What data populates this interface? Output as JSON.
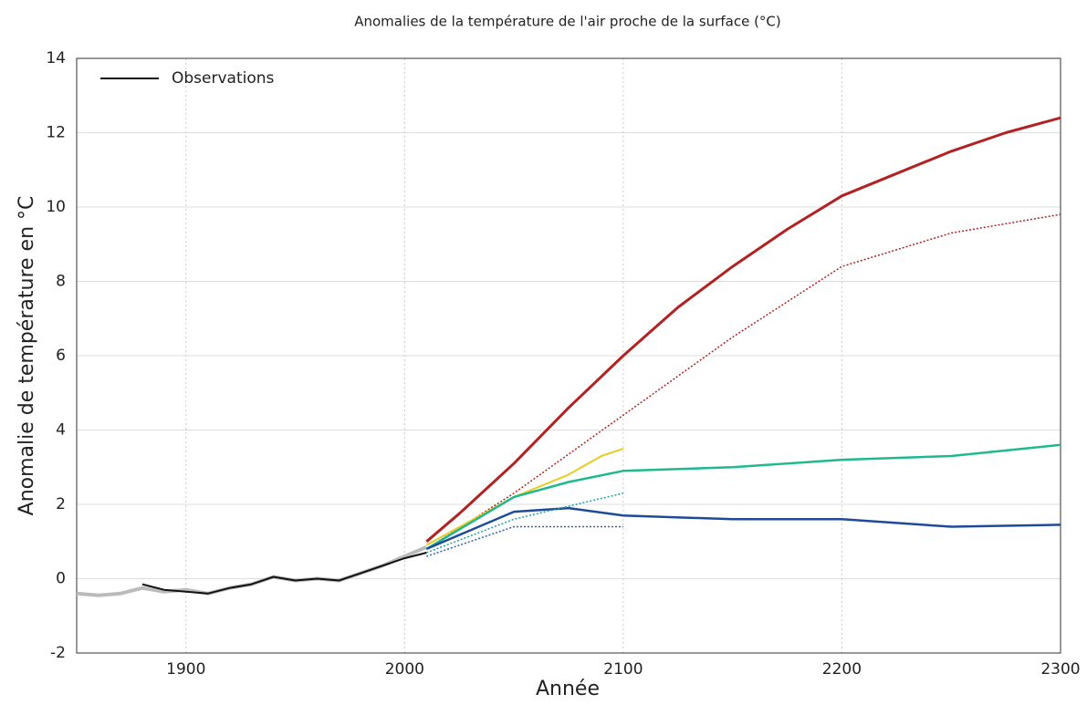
{
  "chart_data": {
    "type": "line",
    "title": "Anomalies de la température de l'air proche de la surface (°C)",
    "x_label": "Année",
    "y_label": "Anomalie de température en °C",
    "xlim": [
      1850,
      2300
    ],
    "xticks": [
      1900,
      2000,
      2100,
      2200,
      2300
    ],
    "ylim": [
      -2,
      14
    ],
    "yticks": [
      -2,
      0,
      2,
      4,
      6,
      8,
      10,
      12,
      14
    ],
    "grid": true,
    "legend": "upper left",
    "series": [
      {
        "color": "#bbbbbb",
        "width": 4,
        "x": [
          1850,
          1860,
          1870,
          1880,
          1890,
          1900,
          1910,
          1920,
          1930,
          1940,
          1950,
          1960,
          1970,
          1980,
          1990,
          2000,
          2010
        ],
        "values": [
          -0.4,
          -0.45,
          -0.4,
          -0.25,
          -0.35,
          -0.3,
          -0.4,
          -0.25,
          -0.15,
          0.05,
          -0.05,
          0.0,
          -0.05,
          0.15,
          0.35,
          0.6,
          0.85
        ]
      },
      {
        "name": "Observations",
        "color": "#111111",
        "width": 2,
        "x": [
          1880,
          1890,
          1900,
          1910,
          1920,
          1930,
          1940,
          1950,
          1960,
          1970,
          1980,
          1990,
          2000,
          2010
        ],
        "values": [
          -0.15,
          -0.3,
          -0.35,
          -0.4,
          -0.25,
          -0.15,
          0.05,
          -0.05,
          0.0,
          -0.05,
          0.15,
          0.35,
          0.55,
          0.7
        ]
      },
      {
        "color": "#b22222",
        "width": 3,
        "x": [
          2010,
          2025,
          2050,
          2075,
          2100,
          2125,
          2150,
          2175,
          2200,
          2225,
          2250,
          2275,
          2300
        ],
        "values": [
          1.0,
          1.75,
          3.1,
          4.6,
          6.0,
          7.3,
          8.4,
          9.4,
          10.3,
          10.9,
          11.5,
          12.0,
          12.4
        ]
      },
      {
        "color": "#b22222",
        "width": 1.5,
        "dash": true,
        "x": [
          2010,
          2050,
          2100,
          2150,
          2200,
          2250,
          2300
        ],
        "values": [
          0.8,
          2.3,
          4.4,
          6.5,
          8.4,
          9.3,
          9.8
        ]
      },
      {
        "color": "#e8cc20",
        "width": 2,
        "x": [
          2010,
          2050,
          2075,
          2090,
          2100
        ],
        "values": [
          0.9,
          2.2,
          2.8,
          3.3,
          3.5
        ]
      },
      {
        "color": "#20b890",
        "width": 2.5,
        "x": [
          2010,
          2050,
          2075,
          2100,
          2150,
          2200,
          2250,
          2300
        ],
        "values": [
          0.8,
          2.2,
          2.6,
          2.9,
          3.0,
          3.2,
          3.3,
          3.6
        ]
      },
      {
        "color": "#1f4a9a",
        "width": 2.5,
        "x": [
          2010,
          2050,
          2075,
          2100,
          2150,
          2200,
          2250,
          2300
        ],
        "values": [
          0.8,
          1.8,
          1.9,
          1.7,
          1.6,
          1.6,
          1.4,
          1.45
        ]
      },
      {
        "color": "#20a0a0",
        "width": 1.5,
        "dash": true,
        "x": [
          2010,
          2050,
          2100
        ],
        "values": [
          0.7,
          1.6,
          2.3
        ]
      },
      {
        "color": "#2f5fb0",
        "width": 1.5,
        "dash": true,
        "x": [
          2010,
          2050,
          2100
        ],
        "values": [
          0.6,
          1.4,
          1.4
        ]
      }
    ]
  }
}
